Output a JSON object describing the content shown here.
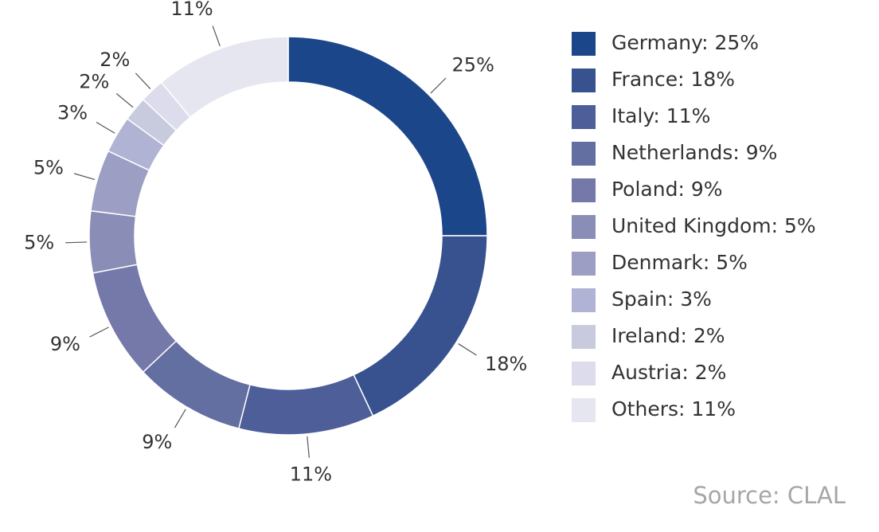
{
  "chart_data": {
    "type": "donut",
    "categories": [
      "Germany: 25%",
      "France: 18%",
      "Italy: 11%",
      "Netherlands: 9%",
      "Poland: 9%",
      "United Kingdom: 5%",
      "Denmark: 5%",
      "Spain: 3%",
      "Ireland: 2%",
      "Austria: 2%",
      "Others: 11%"
    ],
    "values": [
      25,
      18,
      11,
      9,
      9,
      5,
      5,
      3,
      2,
      2,
      11
    ],
    "value_labels": [
      "25%",
      "18%",
      "11%",
      "9%",
      "9%",
      "5%",
      "5%",
      "3%",
      "2%",
      "2%",
      "11%"
    ],
    "colors": [
      "#1c468a",
      "#37528f",
      "#4d5e98",
      "#636ea1",
      "#7579aa",
      "#8a8db5",
      "#9c9fc3",
      "#b0b3d4",
      "#c8cade",
      "#dcdcec",
      "#e6e6f1"
    ],
    "legend": "right",
    "source": "Source: CLAL"
  }
}
